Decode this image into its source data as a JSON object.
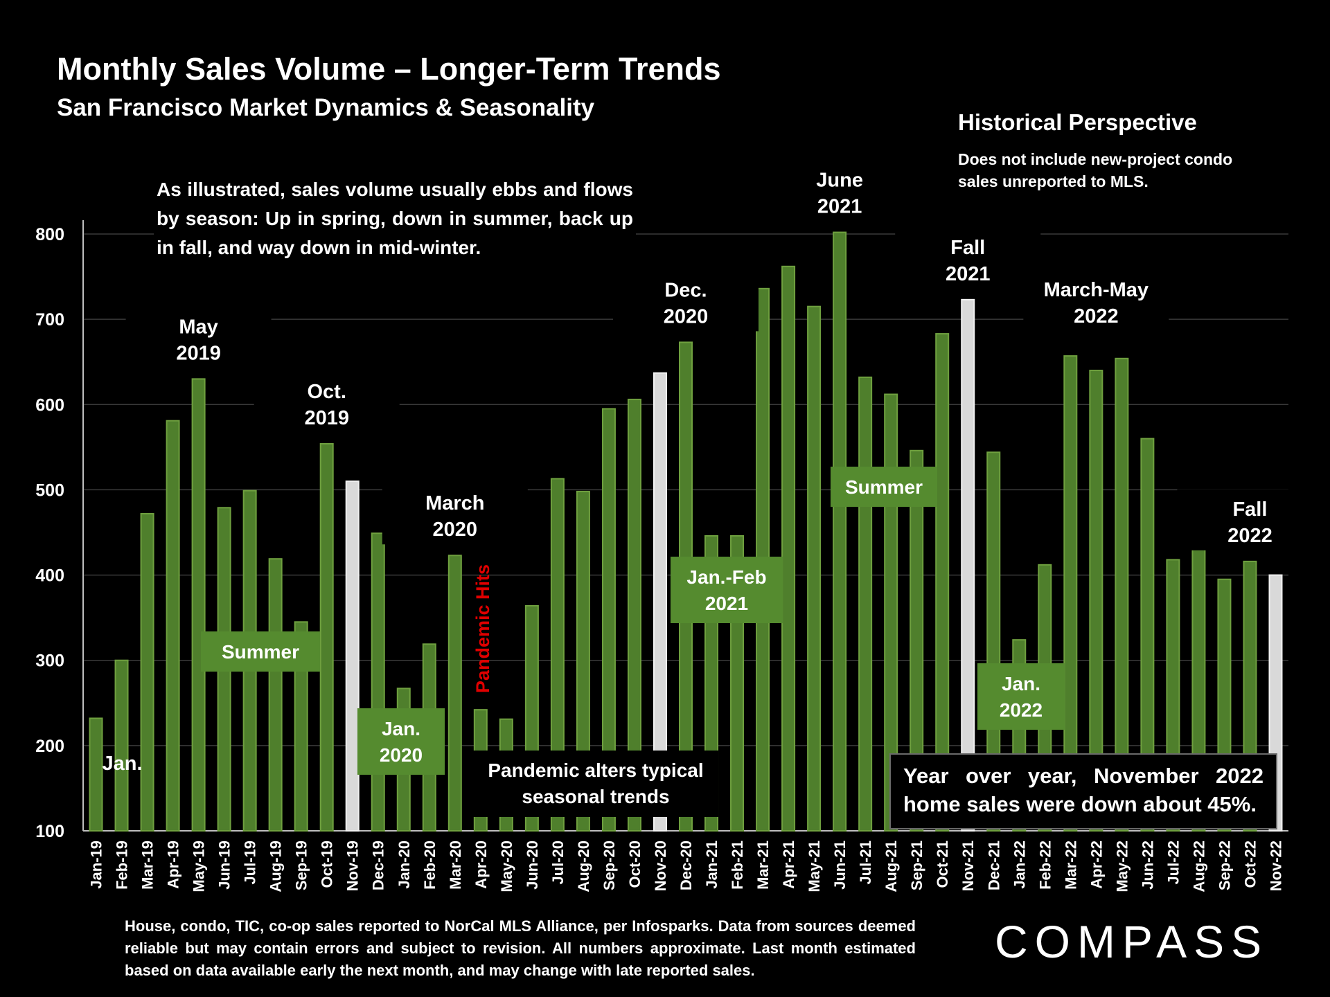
{
  "title": "Monthly Sales Volume – Longer-Term Trends",
  "subtitle": "San Francisco Market Dynamics & Seasonality",
  "historical_title": "Historical Perspective",
  "historical_note": "Does not include new-project condo sales unreported to MLS.",
  "intro_text": "As illustrated, sales volume usually ebbs and flows by season: Up in spring, down in summer, back up in fall, and way down in mid-winter.",
  "footnote": "House, condo, TIC, co-op sales reported to NorCal MLS Alliance, per Infosparks. Data from sources deemed reliable but may contain errors and subject to revision. All numbers approximate. Last month estimated based on data available early the next month, and may change with late reported sales.",
  "logo": "COMPASS",
  "pandemic_hits": "Pandemic Hits",
  "pandemic_box": "Pandemic alters typical seasonal trends",
  "yoy_box": "Year over year, November 2022 home sales were down about 45%.",
  "colors": {
    "green_bar": "#4f7f2c",
    "green_box": "#558b2f",
    "gray_bar": "#d9d9d9",
    "red_text": "#e00000"
  },
  "chart_data": {
    "type": "bar",
    "ylim": [
      100,
      800
    ],
    "yticks": [
      100,
      200,
      300,
      400,
      500,
      600,
      700,
      800
    ],
    "grid": true,
    "categories": [
      "Jan-19",
      "Feb-19",
      "Mar-19",
      "Apr-19",
      "May-19",
      "Jun-19",
      "Jul-19",
      "Aug-19",
      "Sep-19",
      "Oct-19",
      "Nov-19",
      "Dec-19",
      "Jan-20",
      "Feb-20",
      "Mar-20",
      "Apr-20",
      "May-20",
      "Jun-20",
      "Jul-20",
      "Aug-20",
      "Sep-20",
      "Oct-20",
      "Nov-20",
      "Dec-20",
      "Jan-21",
      "Feb-21",
      "Mar-21",
      "Apr-21",
      "May-21",
      "Jun-21",
      "Jul-21",
      "Aug-21",
      "Sep-21",
      "Oct-21",
      "Nov-21",
      "Dec-21",
      "Jan-22",
      "Feb-22",
      "Mar-22",
      "Apr-22",
      "May-22",
      "Jun-22",
      "Jul-22",
      "Aug-22",
      "Sep-22",
      "Oct-22",
      "Nov-22"
    ],
    "values": [
      232,
      300,
      472,
      581,
      630,
      479,
      499,
      419,
      345,
      554,
      510,
      449,
      267,
      319,
      423,
      242,
      231,
      364,
      513,
      498,
      595,
      606,
      637,
      673,
      446,
      446,
      736,
      762,
      715,
      802,
      632,
      612,
      546,
      683,
      723,
      544,
      324,
      412,
      657,
      640,
      654,
      560,
      418,
      431,
      395,
      416,
      400
    ],
    "highlight": [
      "Nov-19",
      "Nov-20",
      "Nov-21",
      "Nov-22"
    ],
    "annotations": [
      {
        "text": "Jan.",
        "kind": "plain",
        "at": "Jan-19"
      },
      {
        "text": "May 2019",
        "kind": "label",
        "at": "May-19"
      },
      {
        "text": "Oct. 2019",
        "kind": "label",
        "at": "Oct-19"
      },
      {
        "text": "Summer",
        "kind": "box",
        "at": "Jul-19"
      },
      {
        "text": "Jan. 2020",
        "kind": "box",
        "at": "Dec-19"
      },
      {
        "text": "March 2020",
        "kind": "label",
        "at": "Mar-20"
      },
      {
        "text": "Dec. 2020",
        "kind": "label",
        "at": "Dec-20"
      },
      {
        "text": "Jan.-Feb 2021",
        "kind": "box",
        "at": "Jan-21"
      },
      {
        "text": "June 2021",
        "kind": "label",
        "at": "Jun-21"
      },
      {
        "text": "Summer",
        "kind": "box",
        "at": "Aug-21"
      },
      {
        "text": "Fall 2021",
        "kind": "label",
        "at": "Nov-21"
      },
      {
        "text": "Jan. 2022",
        "kind": "box",
        "at": "Jan-22"
      },
      {
        "text": "March-May 2022",
        "kind": "label",
        "at": "Apr-22"
      },
      {
        "text": "Fall 2022",
        "kind": "label",
        "at": "Oct-22"
      }
    ]
  }
}
